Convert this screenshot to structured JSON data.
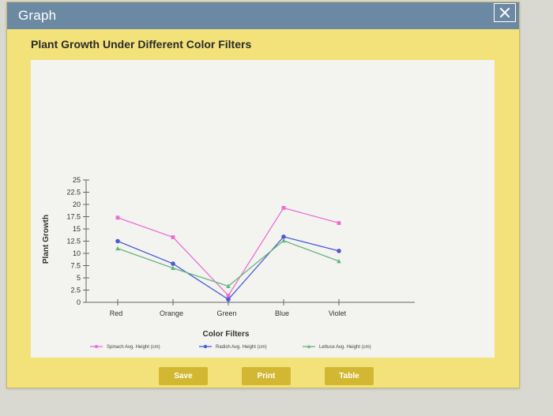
{
  "window": {
    "title": "Graph",
    "close_icon": "close-icon"
  },
  "colors": {
    "titlebar": "#6c89a3",
    "window_background": "#f3e27a",
    "plot_background": "#f3f3f0",
    "button": "#d2b832"
  },
  "buttons": {
    "save": "Save",
    "print": "Print",
    "table": "Table"
  },
  "chart_data": {
    "type": "line",
    "title": "Plant Growth Under Different Color Filters",
    "xlabel": "Color Filters",
    "ylabel": "Plant Growth",
    "categories": [
      "Red",
      "Orange",
      "Green",
      "Blue",
      "Violet"
    ],
    "ylim": [
      0,
      25
    ],
    "yticks": [
      "0",
      "2.5",
      "5",
      "7.5",
      "10",
      "12.5",
      "15",
      "17.5",
      "20",
      "22.5",
      "25"
    ],
    "grid": false,
    "legend_position": "bottom",
    "series": [
      {
        "name": "Spinach Avg. Height (cm)",
        "color": "#ea6fd3",
        "marker": "square",
        "values": [
          17.3,
          13.3,
          1.4,
          19.3,
          16.2
        ]
      },
      {
        "name": "Radish Avg. Height (cm)",
        "color": "#4b5bd6",
        "marker": "circle",
        "values": [
          12.5,
          7.9,
          0.6,
          13.4,
          10.5
        ]
      },
      {
        "name": "Lettuce Avg. Height (cm)",
        "color": "#66b77a",
        "marker": "triangle",
        "values": [
          11.0,
          7.0,
          3.3,
          12.6,
          8.4
        ]
      }
    ]
  }
}
